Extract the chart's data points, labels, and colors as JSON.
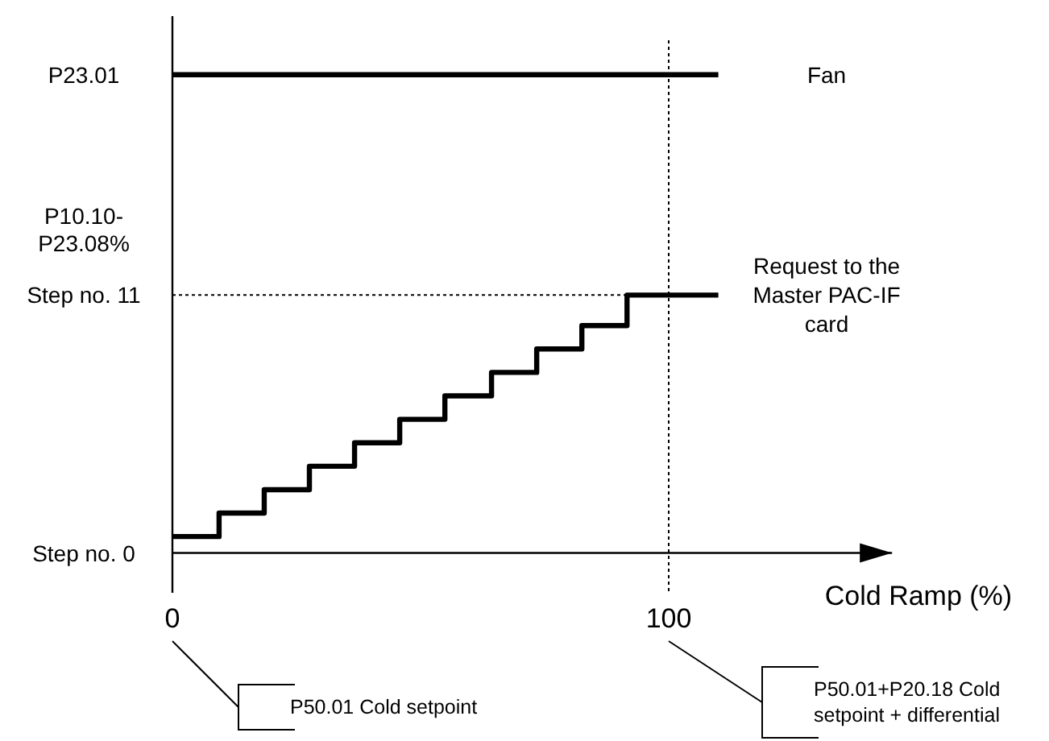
{
  "chart_data": {
    "type": "step",
    "xlabel": "Cold Ramp (%)",
    "xlim": [
      0,
      145
    ],
    "xticks": [
      0,
      100
    ],
    "ylim": [
      -1.7,
      22.9
    ],
    "yticks": [
      {
        "value": 0,
        "label": "Step no. 0"
      },
      {
        "value": 11,
        "label": "Step no. 11"
      },
      {
        "value": 13.8,
        "label": "P10.10-P23.08%"
      },
      {
        "value": 20.4,
        "label": "P23.01"
      }
    ],
    "series": [
      {
        "name": "Fan",
        "color": "#000000",
        "x": [
          0,
          110
        ],
        "values": [
          20.4,
          20.4
        ]
      },
      {
        "name": "Request to the Master PAC-IF card",
        "color": "#000000",
        "x": [
          0,
          9.4,
          18.5,
          27.6,
          36.7,
          45.8,
          54.9,
          64.3,
          73.4,
          82.5,
          91.6,
          110
        ],
        "values": [
          0.7,
          1.7,
          2.7,
          3.7,
          4.7,
          5.7,
          6.7,
          7.7,
          8.7,
          9.7,
          11,
          11
        ]
      }
    ],
    "ref_lines": [
      {
        "axis": "y",
        "value": 11,
        "line_style": "dotted"
      },
      {
        "axis": "x",
        "value": 100,
        "line_style": "dotted"
      }
    ],
    "annotations": [
      "P50.01 Cold setpoint",
      "P50.01+P20.18 Cold setpoint + differential"
    ],
    "marker": "none",
    "line_style": "solid",
    "grid": false,
    "legend": false
  }
}
